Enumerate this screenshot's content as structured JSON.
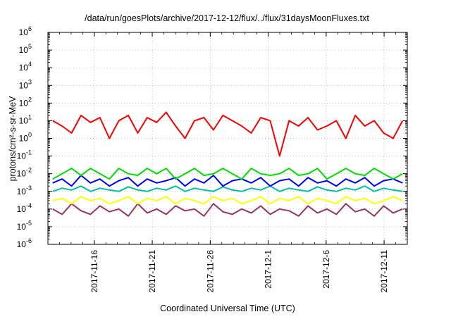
{
  "chart_data": {
    "type": "line",
    "title": "/data/run/goesPlots/archive/2017-12-12/flux/../flux/31daysMoonFluxes.txt",
    "xlabel": "Coordinated Universal Time (UTC)",
    "ylabel": "protons/cm²-s-sr-MeV",
    "yscale": "log",
    "ylim": [
      1e-06,
      1000000.0
    ],
    "xlim": [
      "2017-11-12",
      "2017-12-13"
    ],
    "x_ticks": [
      "2017-11-16",
      "2017-11-21",
      "2017-11-26",
      "2017-12-1",
      "2017-12-6",
      "2017-12-11"
    ],
    "y_ticks": [
      {
        "base": "10",
        "exp": "-6"
      },
      {
        "base": "10",
        "exp": "-5"
      },
      {
        "base": "10",
        "exp": "-4"
      },
      {
        "base": "10",
        "exp": "-3"
      },
      {
        "base": "10",
        "exp": "-2"
      },
      {
        "base": "10",
        "exp": "-1"
      },
      {
        "base": "10",
        "exp": "0"
      },
      {
        "base": "10",
        "exp": "1"
      },
      {
        "base": "10",
        "exp": "2"
      },
      {
        "base": "10",
        "exp": "3"
      },
      {
        "base": "10",
        "exp": "4"
      },
      {
        "base": "10",
        "exp": "5"
      },
      {
        "base": "10",
        "exp": "6"
      }
    ],
    "grid": true,
    "series": [
      {
        "color": "#ff0000",
        "values": [
          10,
          5,
          2,
          20,
          8,
          15,
          1,
          10,
          20,
          2,
          15,
          8,
          30,
          5,
          1,
          10,
          15,
          3,
          20,
          10,
          5,
          2,
          15,
          10,
          0.1,
          10,
          5,
          15,
          3,
          5,
          10,
          1,
          20,
          5,
          10,
          2,
          1,
          10
        ]
      },
      {
        "color": "#00e000",
        "values": [
          0.005,
          0.01,
          0.02,
          0.008,
          0.02,
          0.01,
          0.005,
          0.02,
          0.01,
          0.008,
          0.02,
          0.01,
          0.02,
          0.005,
          0.01,
          0.02,
          0.008,
          0.01,
          0.02,
          0.01,
          0.005,
          0.02,
          0.01,
          0.008,
          0.01,
          0.02,
          0.008,
          0.01,
          0.02,
          0.005,
          0.01,
          0.02,
          0.01,
          0.008,
          0.02,
          0.01,
          0.005,
          0.01
        ]
      },
      {
        "color": "#0000ff",
        "values": [
          0.003,
          0.005,
          0.002,
          0.008,
          0.003,
          0.005,
          0.002,
          0.004,
          0.006,
          0.002,
          0.005,
          0.003,
          0.004,
          0.006,
          0.002,
          0.005,
          0.003,
          0.008,
          0.002,
          0.004,
          0.005,
          0.003,
          0.006,
          0.002,
          0.004,
          0.005,
          0.002,
          0.006,
          0.003,
          0.004,
          0.002,
          0.005,
          0.003,
          0.006,
          0.002,
          0.004,
          0.005,
          0.003
        ]
      },
      {
        "color": "#00c0a0",
        "values": [
          0.001,
          0.0015,
          0.0012,
          0.002,
          0.001,
          0.0015,
          0.0012,
          0.001,
          0.0018,
          0.0012,
          0.001,
          0.0015,
          0.0012,
          0.002,
          0.001,
          0.0015,
          0.0012,
          0.001,
          0.0018,
          0.0012,
          0.001,
          0.0015,
          0.0012,
          0.002,
          0.001,
          0.0015,
          0.0012,
          0.001,
          0.0018,
          0.0012,
          0.001,
          0.0015,
          0.0012,
          0.002,
          0.001,
          0.0015,
          0.0012,
          0.001
        ]
      },
      {
        "color": "#ffff00",
        "values": [
          0.0003,
          0.0004,
          0.0002,
          0.0005,
          0.0003,
          0.0004,
          0.0002,
          0.0003,
          0.0005,
          0.0002,
          0.0004,
          0.0003,
          0.0005,
          0.0002,
          0.0004,
          0.0003,
          0.0002,
          0.0005,
          0.0003,
          0.0004,
          0.0002,
          0.0003,
          0.0005,
          0.0002,
          0.0004,
          0.0003,
          0.0005,
          0.0002,
          0.0004,
          0.0003,
          0.0002,
          0.0005,
          0.0003,
          0.0004,
          0.0002,
          0.0003,
          0.0005,
          0.0003
        ]
      },
      {
        "color": "#993366",
        "values": [
          0.0001,
          5e-05,
          0.0002,
          8e-05,
          5e-05,
          0.00015,
          7e-05,
          0.0001,
          4e-05,
          0.0002,
          6e-05,
          0.0001,
          5e-05,
          0.00015,
          8e-05,
          0.0001,
          4e-05,
          0.0002,
          7e-05,
          5e-05,
          0.0001,
          6e-05,
          0.00015,
          5e-05,
          0.0001,
          8e-05,
          4e-05,
          0.00015,
          6e-05,
          0.0001,
          5e-05,
          0.0002,
          7e-05,
          0.0001,
          4e-05,
          0.00015,
          6e-05,
          0.0001
        ]
      }
    ]
  }
}
